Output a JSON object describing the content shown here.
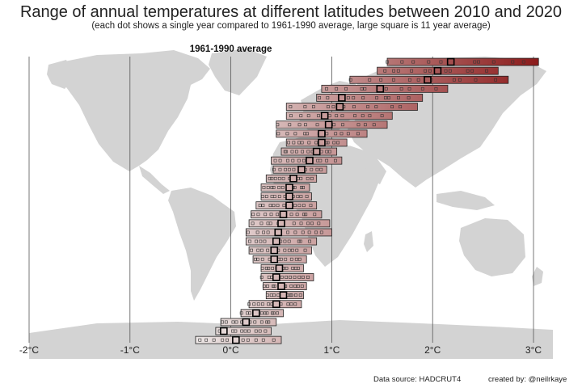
{
  "title": "Range of annual temperatures at different latitudes between 2010 and 2020",
  "subtitle": "(each dot shows a single year compared to 1961-1990 average, large square is 11 year average)",
  "baseline_label": "1961-1990 average",
  "footer": {
    "source": "Data source: HADCRUT4",
    "credit": "created  by: @neilrkaye"
  },
  "colors": {
    "map_land": "#d3d3d3",
    "gridline": "#555555",
    "cool": "#ece7e6",
    "warm": "#8b1a1a"
  },
  "chart_data": {
    "type": "scatter",
    "title": "Range of annual temperatures at different latitudes between 2010 and 2020",
    "xlabel": "",
    "ylabel": "",
    "xlim": [
      -2,
      3
    ],
    "x_ticks": [
      "-2°C",
      "-1°C",
      "0°C",
      "1°C",
      "2°C",
      "3°C"
    ],
    "x_tick_values": [
      -2,
      -1,
      0,
      1,
      2,
      3
    ],
    "grid": "vertical",
    "annotation": "1961-1990 average",
    "background": "world map",
    "rows": [
      {
        "min": 1.55,
        "max": 3.05,
        "avg": 2.18
      },
      {
        "min": 1.45,
        "max": 2.65,
        "avg": 2.05
      },
      {
        "min": 1.18,
        "max": 2.75,
        "avg": 1.95
      },
      {
        "min": 0.9,
        "max": 2.15,
        "avg": 1.48
      },
      {
        "min": 0.85,
        "max": 1.9,
        "avg": 1.1
      },
      {
        "min": 0.55,
        "max": 1.85,
        "avg": 1.08
      },
      {
        "min": 0.55,
        "max": 1.6,
        "avg": 0.93
      },
      {
        "min": 0.45,
        "max": 1.55,
        "avg": 0.97
      },
      {
        "min": 0.45,
        "max": 1.35,
        "avg": 0.9
      },
      {
        "min": 0.55,
        "max": 1.15,
        "avg": 0.9
      },
      {
        "min": 0.5,
        "max": 1.05,
        "avg": 0.85
      },
      {
        "min": 0.4,
        "max": 1.1,
        "avg": 0.78
      },
      {
        "min": 0.42,
        "max": 0.95,
        "avg": 0.7
      },
      {
        "min": 0.35,
        "max": 0.85,
        "avg": 0.62
      },
      {
        "min": 0.3,
        "max": 0.78,
        "avg": 0.58
      },
      {
        "min": 0.3,
        "max": 0.8,
        "avg": 0.58
      },
      {
        "min": 0.25,
        "max": 0.85,
        "avg": 0.58
      },
      {
        "min": 0.2,
        "max": 0.9,
        "avg": 0.52
      },
      {
        "min": 0.18,
        "max": 0.98,
        "avg": 0.5
      },
      {
        "min": 0.15,
        "max": 1.0,
        "avg": 0.47
      },
      {
        "min": 0.15,
        "max": 0.85,
        "avg": 0.45
      },
      {
        "min": 0.18,
        "max": 0.8,
        "avg": 0.43
      },
      {
        "min": 0.22,
        "max": 0.75,
        "avg": 0.43
      },
      {
        "min": 0.3,
        "max": 0.72,
        "avg": 0.48
      },
      {
        "min": 0.3,
        "max": 0.82,
        "avg": 0.45
      },
      {
        "min": 0.32,
        "max": 0.75,
        "avg": 0.5
      },
      {
        "min": 0.35,
        "max": 0.72,
        "avg": 0.52
      },
      {
        "min": 0.18,
        "max": 0.7,
        "avg": 0.45
      },
      {
        "min": 0.1,
        "max": 0.52,
        "avg": 0.25
      },
      {
        "min": -0.1,
        "max": 0.45,
        "avg": 0.15
      },
      {
        "min": -0.15,
        "max": 0.4,
        "avg": -0.07
      },
      {
        "min": -0.35,
        "max": 0.5,
        "avg": 0.05
      }
    ]
  }
}
